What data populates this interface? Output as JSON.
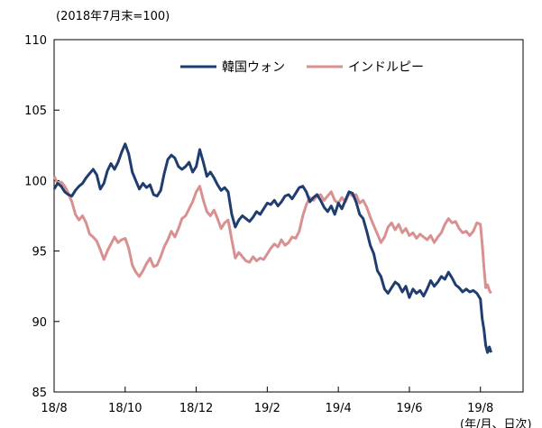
{
  "chart_data": {
    "type": "line",
    "title": "",
    "unit_note": "(2018年7月末=100)",
    "xlabel_note": "(年/月、日次)",
    "ylim": [
      85,
      110
    ],
    "yticks": [
      85,
      90,
      95,
      100,
      105,
      110
    ],
    "xlim": [
      0,
      13.2
    ],
    "xticks": [
      {
        "v": 0,
        "label": "18/8"
      },
      {
        "v": 2,
        "label": "18/10"
      },
      {
        "v": 4,
        "label": "18/12"
      },
      {
        "v": 6,
        "label": "19/2"
      },
      {
        "v": 8,
        "label": "19/4"
      },
      {
        "v": 10,
        "label": "19/6"
      },
      {
        "v": 12,
        "label": "19/8"
      }
    ],
    "grid": false,
    "legend_position": "top",
    "series": [
      {
        "name": "韓国ウォン",
        "color": "#1f3d6e",
        "points": [
          [
            0.0,
            99.4
          ],
          [
            0.1,
            99.8
          ],
          [
            0.2,
            99.6
          ],
          [
            0.3,
            99.2
          ],
          [
            0.4,
            99.0
          ],
          [
            0.5,
            98.9
          ],
          [
            0.6,
            99.3
          ],
          [
            0.7,
            99.6
          ],
          [
            0.8,
            99.8
          ],
          [
            0.9,
            100.2
          ],
          [
            1.0,
            100.5
          ],
          [
            1.1,
            100.8
          ],
          [
            1.2,
            100.4
          ],
          [
            1.3,
            99.4
          ],
          [
            1.4,
            99.8
          ],
          [
            1.5,
            100.7
          ],
          [
            1.6,
            101.2
          ],
          [
            1.7,
            100.8
          ],
          [
            1.8,
            101.3
          ],
          [
            1.9,
            102.0
          ],
          [
            2.0,
            102.6
          ],
          [
            2.1,
            101.9
          ],
          [
            2.2,
            100.6
          ],
          [
            2.3,
            100.0
          ],
          [
            2.4,
            99.4
          ],
          [
            2.5,
            99.8
          ],
          [
            2.6,
            99.5
          ],
          [
            2.7,
            99.7
          ],
          [
            2.8,
            99.0
          ],
          [
            2.9,
            98.9
          ],
          [
            3.0,
            99.3
          ],
          [
            3.1,
            100.5
          ],
          [
            3.2,
            101.5
          ],
          [
            3.3,
            101.8
          ],
          [
            3.4,
            101.6
          ],
          [
            3.5,
            101.0
          ],
          [
            3.6,
            100.8
          ],
          [
            3.7,
            101.0
          ],
          [
            3.8,
            101.3
          ],
          [
            3.9,
            100.6
          ],
          [
            4.0,
            101.0
          ],
          [
            4.1,
            102.2
          ],
          [
            4.2,
            101.3
          ],
          [
            4.3,
            100.3
          ],
          [
            4.4,
            100.6
          ],
          [
            4.5,
            100.2
          ],
          [
            4.6,
            99.7
          ],
          [
            4.7,
            99.3
          ],
          [
            4.8,
            99.5
          ],
          [
            4.9,
            99.2
          ],
          [
            5.0,
            97.6
          ],
          [
            5.1,
            96.7
          ],
          [
            5.2,
            97.2
          ],
          [
            5.3,
            97.5
          ],
          [
            5.4,
            97.3
          ],
          [
            5.5,
            97.1
          ],
          [
            5.6,
            97.4
          ],
          [
            5.7,
            97.8
          ],
          [
            5.8,
            97.6
          ],
          [
            5.9,
            98.0
          ],
          [
            6.0,
            98.4
          ],
          [
            6.1,
            98.3
          ],
          [
            6.2,
            98.6
          ],
          [
            6.3,
            98.2
          ],
          [
            6.4,
            98.5
          ],
          [
            6.5,
            98.9
          ],
          [
            6.6,
            99.0
          ],
          [
            6.7,
            98.7
          ],
          [
            6.8,
            99.1
          ],
          [
            6.9,
            99.5
          ],
          [
            7.0,
            99.6
          ],
          [
            7.1,
            99.2
          ],
          [
            7.2,
            98.5
          ],
          [
            7.3,
            98.8
          ],
          [
            7.4,
            99.0
          ],
          [
            7.5,
            98.6
          ],
          [
            7.6,
            98.1
          ],
          [
            7.7,
            97.8
          ],
          [
            7.8,
            98.2
          ],
          [
            7.9,
            97.6
          ],
          [
            8.0,
            98.4
          ],
          [
            8.1,
            98.0
          ],
          [
            8.2,
            98.6
          ],
          [
            8.3,
            99.2
          ],
          [
            8.4,
            99.1
          ],
          [
            8.5,
            98.5
          ],
          [
            8.6,
            97.6
          ],
          [
            8.7,
            97.3
          ],
          [
            8.8,
            96.4
          ],
          [
            8.9,
            95.4
          ],
          [
            9.0,
            94.8
          ],
          [
            9.1,
            93.6
          ],
          [
            9.2,
            93.2
          ],
          [
            9.3,
            92.3
          ],
          [
            9.4,
            92.0
          ],
          [
            9.5,
            92.4
          ],
          [
            9.6,
            92.8
          ],
          [
            9.7,
            92.6
          ],
          [
            9.8,
            92.1
          ],
          [
            9.9,
            92.5
          ],
          [
            10.0,
            91.7
          ],
          [
            10.1,
            92.3
          ],
          [
            10.2,
            92.0
          ],
          [
            10.3,
            92.2
          ],
          [
            10.4,
            91.8
          ],
          [
            10.5,
            92.3
          ],
          [
            10.6,
            92.9
          ],
          [
            10.7,
            92.5
          ],
          [
            10.8,
            92.8
          ],
          [
            10.9,
            93.2
          ],
          [
            11.0,
            93.0
          ],
          [
            11.1,
            93.5
          ],
          [
            11.2,
            93.1
          ],
          [
            11.3,
            92.6
          ],
          [
            11.4,
            92.4
          ],
          [
            11.5,
            92.1
          ],
          [
            11.6,
            92.3
          ],
          [
            11.7,
            92.1
          ],
          [
            11.8,
            92.2
          ],
          [
            11.9,
            92.0
          ],
          [
            12.0,
            91.6
          ],
          [
            12.05,
            90.2
          ],
          [
            12.1,
            89.4
          ],
          [
            12.15,
            88.3
          ],
          [
            12.2,
            87.8
          ],
          [
            12.25,
            88.2
          ],
          [
            12.3,
            87.8
          ]
        ]
      },
      {
        "name": "インドルピー",
        "color": "#d99090",
        "points": [
          [
            0.0,
            100.3
          ],
          [
            0.1,
            99.8
          ],
          [
            0.2,
            99.9
          ],
          [
            0.3,
            99.6
          ],
          [
            0.4,
            99.1
          ],
          [
            0.5,
            98.5
          ],
          [
            0.6,
            97.6
          ],
          [
            0.7,
            97.2
          ],
          [
            0.8,
            97.5
          ],
          [
            0.9,
            97.0
          ],
          [
            1.0,
            96.2
          ],
          [
            1.1,
            96.0
          ],
          [
            1.2,
            95.7
          ],
          [
            1.3,
            95.1
          ],
          [
            1.4,
            94.4
          ],
          [
            1.5,
            95.0
          ],
          [
            1.6,
            95.5
          ],
          [
            1.7,
            96.0
          ],
          [
            1.8,
            95.6
          ],
          [
            1.9,
            95.8
          ],
          [
            2.0,
            95.9
          ],
          [
            2.1,
            95.2
          ],
          [
            2.2,
            94.0
          ],
          [
            2.3,
            93.5
          ],
          [
            2.4,
            93.2
          ],
          [
            2.5,
            93.6
          ],
          [
            2.6,
            94.1
          ],
          [
            2.7,
            94.5
          ],
          [
            2.8,
            93.9
          ],
          [
            2.9,
            94.0
          ],
          [
            3.0,
            94.6
          ],
          [
            3.1,
            95.3
          ],
          [
            3.2,
            95.8
          ],
          [
            3.3,
            96.4
          ],
          [
            3.4,
            96.0
          ],
          [
            3.5,
            96.6
          ],
          [
            3.6,
            97.3
          ],
          [
            3.7,
            97.5
          ],
          [
            3.8,
            98.0
          ],
          [
            3.9,
            98.5
          ],
          [
            4.0,
            99.2
          ],
          [
            4.1,
            99.6
          ],
          [
            4.2,
            98.6
          ],
          [
            4.3,
            97.8
          ],
          [
            4.4,
            97.5
          ],
          [
            4.5,
            97.9
          ],
          [
            4.6,
            97.3
          ],
          [
            4.7,
            96.6
          ],
          [
            4.8,
            97.0
          ],
          [
            4.9,
            97.2
          ],
          [
            5.0,
            95.8
          ],
          [
            5.1,
            94.5
          ],
          [
            5.2,
            94.9
          ],
          [
            5.3,
            94.6
          ],
          [
            5.4,
            94.3
          ],
          [
            5.5,
            94.2
          ],
          [
            5.6,
            94.6
          ],
          [
            5.7,
            94.3
          ],
          [
            5.8,
            94.5
          ],
          [
            5.9,
            94.4
          ],
          [
            6.0,
            94.8
          ],
          [
            6.1,
            95.2
          ],
          [
            6.2,
            95.5
          ],
          [
            6.3,
            95.3
          ],
          [
            6.4,
            95.8
          ],
          [
            6.5,
            95.4
          ],
          [
            6.6,
            95.6
          ],
          [
            6.7,
            96.0
          ],
          [
            6.8,
            95.9
          ],
          [
            6.9,
            96.4
          ],
          [
            7.0,
            97.5
          ],
          [
            7.1,
            98.3
          ],
          [
            7.2,
            98.8
          ],
          [
            7.3,
            98.6
          ],
          [
            7.4,
            98.9
          ],
          [
            7.5,
            99.0
          ],
          [
            7.6,
            98.6
          ],
          [
            7.7,
            98.9
          ],
          [
            7.8,
            99.2
          ],
          [
            7.9,
            98.6
          ],
          [
            8.0,
            98.4
          ],
          [
            8.1,
            98.8
          ],
          [
            8.2,
            98.5
          ],
          [
            8.3,
            99.1
          ],
          [
            8.4,
            98.9
          ],
          [
            8.5,
            99.0
          ],
          [
            8.6,
            98.4
          ],
          [
            8.7,
            98.6
          ],
          [
            8.8,
            98.1
          ],
          [
            8.9,
            97.4
          ],
          [
            9.0,
            96.8
          ],
          [
            9.1,
            96.2
          ],
          [
            9.2,
            95.6
          ],
          [
            9.3,
            96.0
          ],
          [
            9.4,
            96.7
          ],
          [
            9.5,
            97.0
          ],
          [
            9.6,
            96.5
          ],
          [
            9.7,
            96.9
          ],
          [
            9.8,
            96.3
          ],
          [
            9.9,
            96.6
          ],
          [
            10.0,
            96.1
          ],
          [
            10.1,
            96.3
          ],
          [
            10.2,
            95.9
          ],
          [
            10.3,
            96.2
          ],
          [
            10.4,
            96.0
          ],
          [
            10.5,
            95.8
          ],
          [
            10.6,
            96.1
          ],
          [
            10.7,
            95.6
          ],
          [
            10.8,
            96.0
          ],
          [
            10.9,
            96.3
          ],
          [
            11.0,
            96.9
          ],
          [
            11.1,
            97.3
          ],
          [
            11.2,
            97.0
          ],
          [
            11.3,
            97.1
          ],
          [
            11.4,
            96.6
          ],
          [
            11.5,
            96.3
          ],
          [
            11.6,
            96.4
          ],
          [
            11.7,
            96.1
          ],
          [
            11.8,
            96.4
          ],
          [
            11.9,
            97.0
          ],
          [
            12.0,
            96.9
          ],
          [
            12.05,
            95.5
          ],
          [
            12.1,
            93.8
          ],
          [
            12.15,
            92.4
          ],
          [
            12.2,
            92.6
          ],
          [
            12.25,
            92.2
          ],
          [
            12.3,
            92.0
          ]
        ]
      }
    ]
  }
}
